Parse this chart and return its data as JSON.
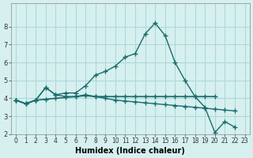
{
  "xlabel": "Humidex (Indice chaleur)",
  "background_color": "#d6f0f0",
  "grid_color": "#b0d8d8",
  "line_color": "#1a6b6b",
  "x_values": [
    0,
    1,
    2,
    3,
    4,
    5,
    6,
    7,
    8,
    9,
    10,
    11,
    12,
    13,
    14,
    15,
    16,
    17,
    18,
    19,
    20,
    21,
    22,
    23
  ],
  "line1": [
    3.9,
    3.7,
    3.9,
    4.6,
    4.2,
    4.3,
    4.3,
    4.7,
    5.3,
    5.5,
    5.8,
    6.3,
    6.5,
    7.6,
    8.2,
    7.5,
    6.0,
    5.0,
    4.1,
    3.5,
    2.1,
    2.7,
    2.4,
    null
  ],
  "line2": [
    3.9,
    3.7,
    3.9,
    4.6,
    4.2,
    4.1,
    4.1,
    4.2,
    4.1,
    4.0,
    3.9,
    3.85,
    3.8,
    3.75,
    3.7,
    3.65,
    3.6,
    3.55,
    3.5,
    3.45,
    3.4,
    3.35,
    3.3,
    null
  ],
  "line3": [
    3.9,
    3.7,
    3.9,
    3.95,
    4.0,
    4.05,
    4.1,
    4.15,
    4.1,
    4.1,
    4.1,
    4.1,
    4.1,
    4.1,
    4.1,
    4.1,
    4.1,
    4.1,
    4.1,
    4.1,
    4.1,
    null,
    null,
    null
  ],
  "ylim": [
    2,
    9
  ],
  "xlim": [
    0,
    23
  ],
  "yticks": [
    2,
    3,
    4,
    5,
    6,
    7,
    8
  ],
  "xticks": [
    0,
    1,
    2,
    3,
    4,
    5,
    6,
    7,
    8,
    9,
    10,
    11,
    12,
    13,
    14,
    15,
    16,
    17,
    18,
    19,
    20,
    21,
    22,
    23
  ]
}
